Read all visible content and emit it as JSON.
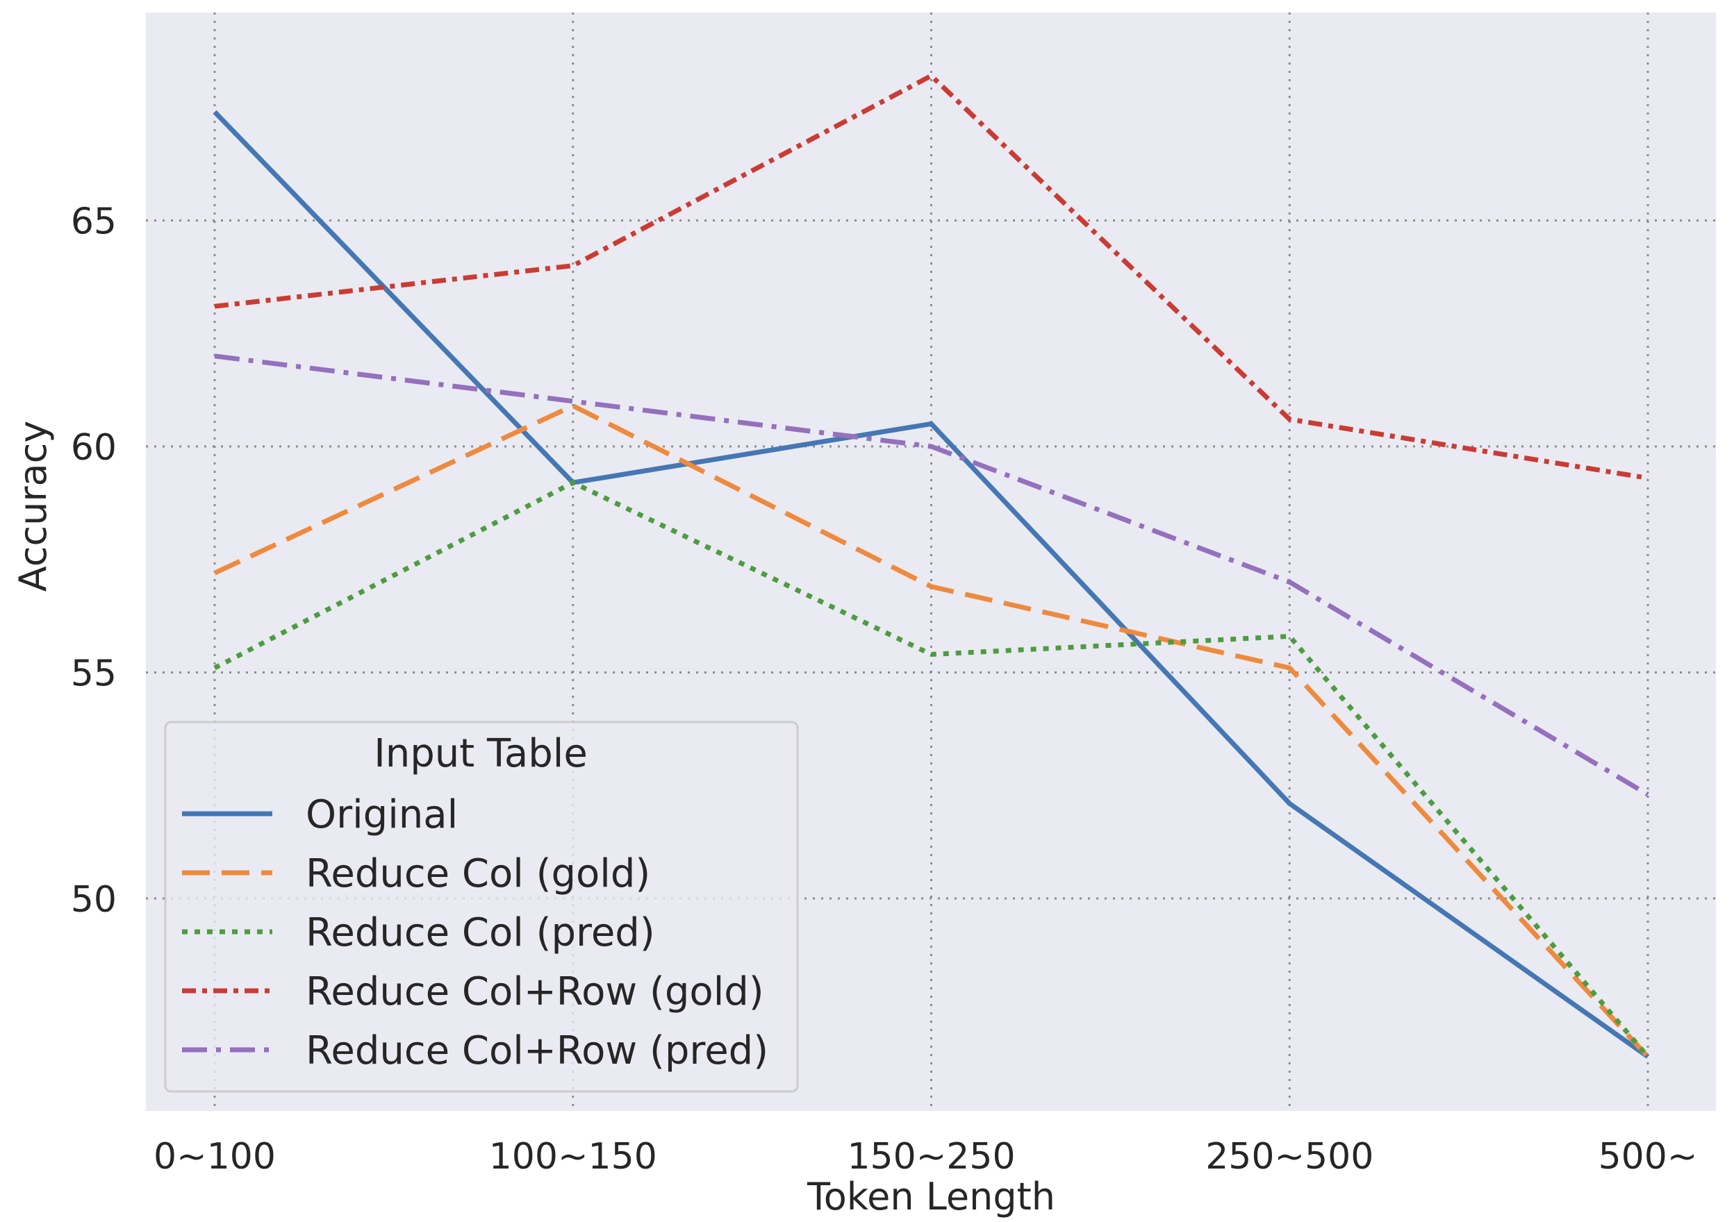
{
  "chart_data": {
    "type": "line",
    "categories": [
      "0~100",
      "100~150",
      "150~250",
      "250~500",
      "500~"
    ],
    "xlabel": "Token Length",
    "ylabel": "Accuracy",
    "ylim": [
      45.3,
      69.6
    ],
    "yticks": [
      50,
      55,
      60,
      65
    ],
    "grid": true,
    "legend": {
      "title": "Input Table",
      "placement": "lower-left"
    },
    "series": [
      {
        "name": "Original",
        "color": "#4477b4",
        "dash": "solid",
        "values": [
          67.4,
          59.2,
          60.5,
          52.1,
          46.5
        ]
      },
      {
        "name": "Reduce Col (gold)",
        "color": "#ee8a3e",
        "dash": "dashed",
        "values": [
          57.2,
          60.9,
          56.9,
          55.1,
          46.5
        ]
      },
      {
        "name": "Reduce Col (pred)",
        "color": "#4d9c40",
        "dash": "dotted",
        "values": [
          55.1,
          59.2,
          55.4,
          55.8,
          46.5
        ]
      },
      {
        "name": "Reduce Col+Row (gold)",
        "color": "#c93c34",
        "dash": "dashdotdense",
        "values": [
          63.1,
          64.0,
          68.2,
          60.6,
          59.3
        ]
      },
      {
        "name": "Reduce Col+Row (pred)",
        "color": "#9470bd",
        "dash": "dashdot",
        "values": [
          62.0,
          61.0,
          60.0,
          57.0,
          52.3
        ]
      }
    ]
  }
}
